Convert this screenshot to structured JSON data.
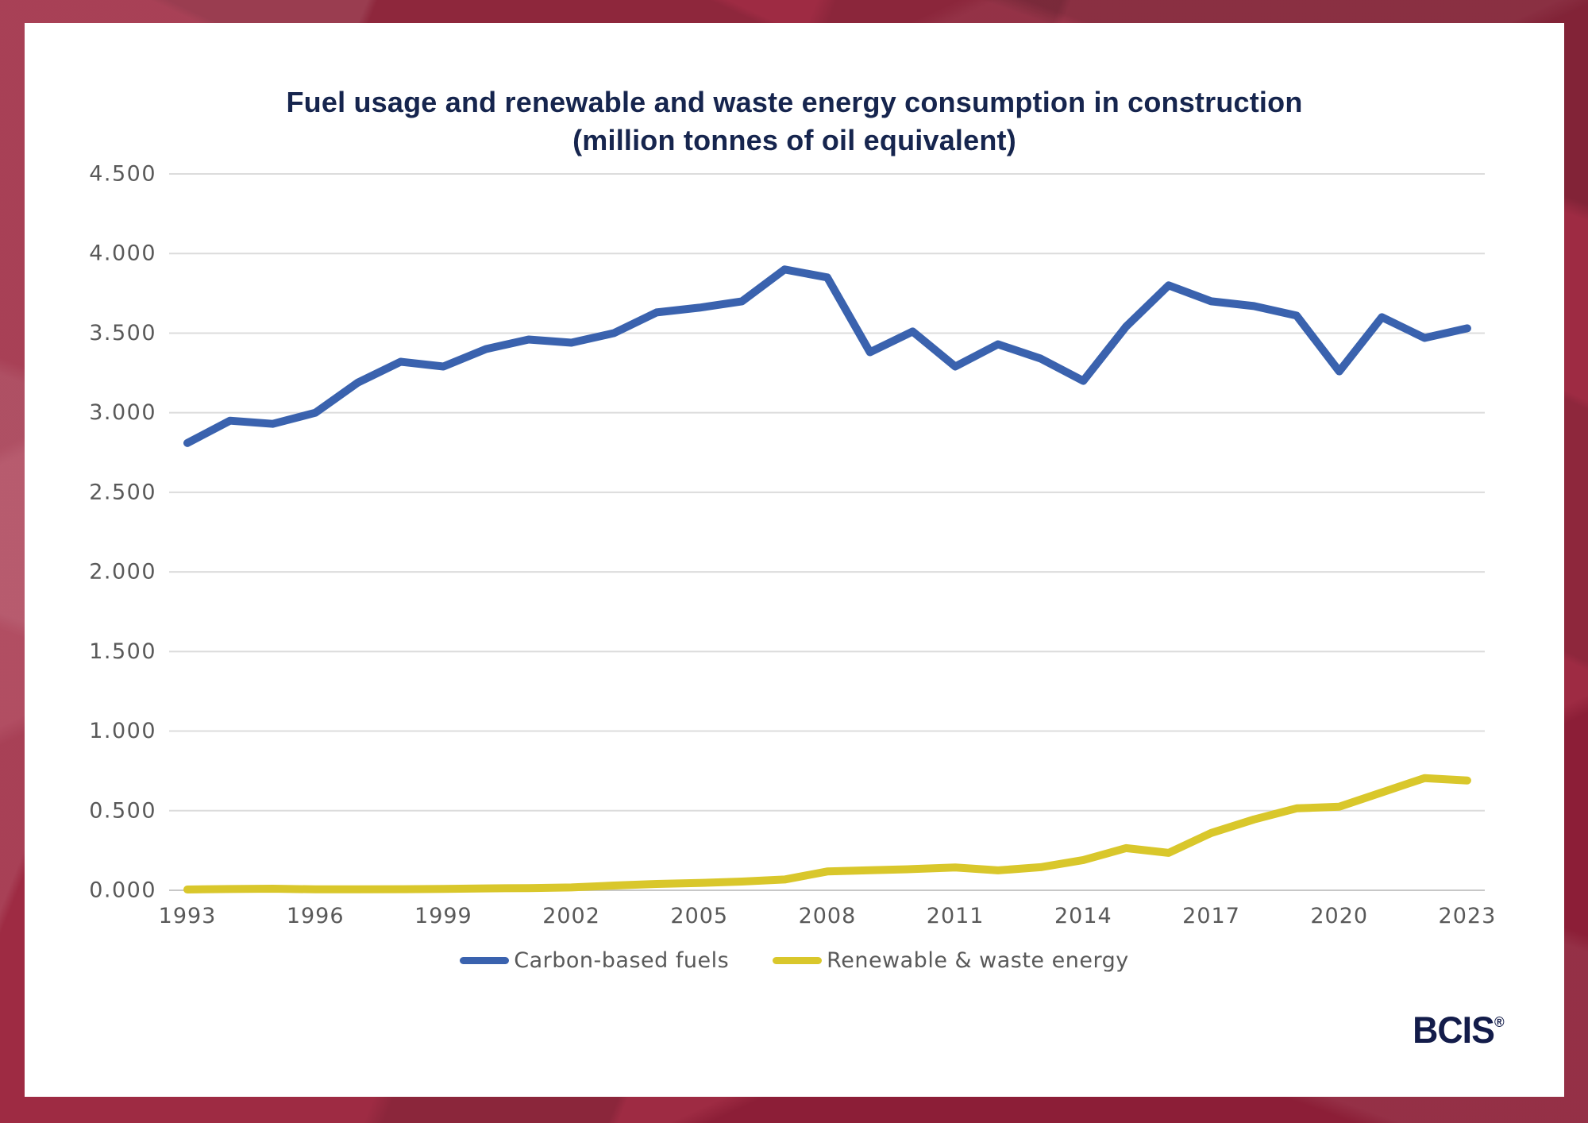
{
  "title": {
    "line1": "Fuel usage and renewable and waste energy consumption in construction",
    "line2": "(million tonnes of oil equivalent)"
  },
  "logo": {
    "text": "BCIS",
    "registered": "®"
  },
  "colors": {
    "title_navy": "#16254E",
    "tick_gray": "#595959",
    "gridline": "#DCDCDC",
    "zero_gridline": "#C7C7C7",
    "carbon_blue": "#3A62AE",
    "renewable_yellow": "#D9C72B",
    "border_crimson": "#9E2B43",
    "card_white": "#FFFFFF",
    "logo_navy": "#131C4A"
  },
  "chart_data": {
    "type": "line",
    "title": "Fuel usage and renewable and waste energy consumption in construction (million tonnes of oil equivalent)",
    "xlabel": "",
    "ylabel": "",
    "grid": true,
    "legend_position": "bottom",
    "ylim": [
      0,
      4.5
    ],
    "ytick_labels": [
      "0.000",
      "0.500",
      "1.000",
      "1.500",
      "2.000",
      "2.500",
      "3.000",
      "3.500",
      "4.000",
      "4.500"
    ],
    "ytick_values": [
      0,
      0.5,
      1.0,
      1.5,
      2.0,
      2.5,
      3.0,
      3.5,
      4.0,
      4.5
    ],
    "xticks": [
      1993,
      1996,
      1999,
      2002,
      2005,
      2008,
      2011,
      2014,
      2017,
      2020,
      2023
    ],
    "x": [
      1993,
      1994,
      1995,
      1996,
      1997,
      1998,
      1999,
      2000,
      2001,
      2002,
      2003,
      2004,
      2005,
      2006,
      2007,
      2008,
      2009,
      2010,
      2011,
      2012,
      2013,
      2014,
      2015,
      2016,
      2017,
      2018,
      2019,
      2020,
      2021,
      2022,
      2023
    ],
    "series": [
      {
        "name": "Carbon-based fuels",
        "color": "#3A62AE",
        "values": [
          2.81,
          2.95,
          2.93,
          3.0,
          3.19,
          3.32,
          3.29,
          3.4,
          3.46,
          3.44,
          3.5,
          3.63,
          3.66,
          3.7,
          3.9,
          3.85,
          3.38,
          3.51,
          3.29,
          3.43,
          3.34,
          3.2,
          3.54,
          3.8,
          3.7,
          3.67,
          3.61,
          3.26,
          3.6,
          3.47,
          3.53
        ]
      },
      {
        "name": "Renewable & waste energy",
        "color": "#D9C72B",
        "values": [
          0.005,
          0.008,
          0.01,
          0.006,
          0.006,
          0.007,
          0.009,
          0.012,
          0.014,
          0.018,
          0.03,
          0.04,
          0.046,
          0.055,
          0.068,
          0.118,
          0.126,
          0.133,
          0.143,
          0.125,
          0.145,
          0.19,
          0.265,
          0.235,
          0.36,
          0.445,
          0.515,
          0.525,
          0.615,
          0.705,
          0.69
        ]
      }
    ]
  }
}
